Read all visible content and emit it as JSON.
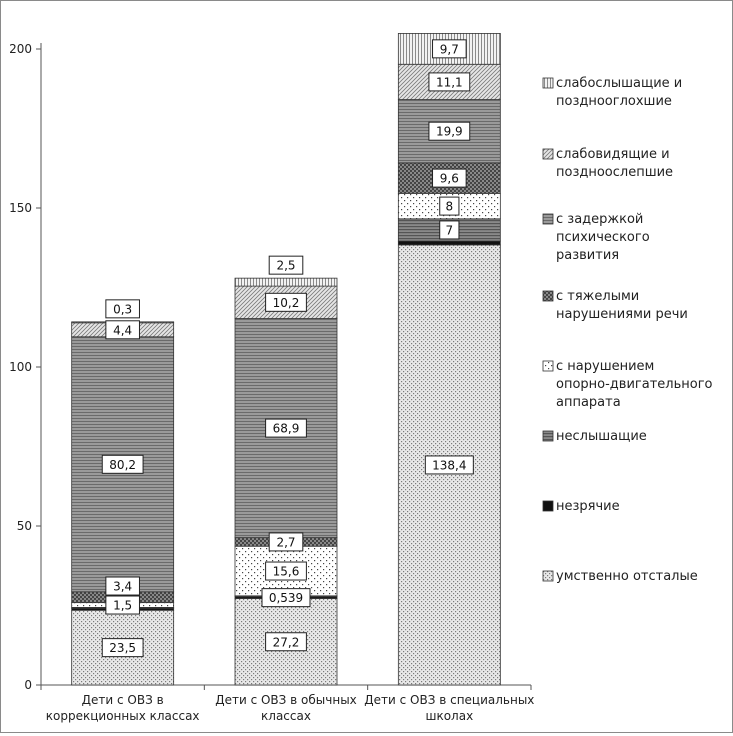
{
  "chart_data": {
    "type": "bar",
    "stacked": true,
    "title": "",
    "xlabel": "",
    "ylabel": "",
    "ylim": [
      0,
      200
    ],
    "yticks": [
      "0",
      "50",
      "100",
      "150",
      "200"
    ],
    "grid": false,
    "legend_position": "right",
    "categories": [
      [
        "Дети с ОВЗ в",
        "коррекционных классах"
      ],
      [
        "Дети с ОВЗ в обычных",
        "классах"
      ],
      [
        "Дети с ОВЗ в специальных",
        "школах"
      ]
    ],
    "series": [
      {
        "name": "умственно отсталые",
        "legend_lines": [
          "умственно отсталые"
        ],
        "values": [
          23.5,
          27.2,
          138.4
        ],
        "labels": [
          "23,5",
          "27,2",
          "138,4"
        ]
      },
      {
        "name": "незрячие",
        "legend_lines": [
          "незрячие"
        ],
        "values": [
          0.6,
          0.539,
          1.2
        ],
        "labels": [
          "",
          "0,539",
          ""
        ]
      },
      {
        "name": "неслышащие",
        "legend_lines": [
          "неслышащие"
        ],
        "values": [
          0.3,
          0.3,
          7
        ],
        "labels": [
          "",
          "",
          "7"
        ]
      },
      {
        "name": "с нарушением опорно-двигательного аппарата",
        "legend_lines": [
          "с нарушением",
          "опорно-двигательного",
          "аппарата"
        ],
        "values": [
          1.5,
          15.6,
          8
        ],
        "labels": [
          "1,5",
          "15,6",
          "8"
        ]
      },
      {
        "name": "с тяжелыми нарушениями речи",
        "legend_lines": [
          "с тяжелыми",
          "нарушениями речи"
        ],
        "values": [
          3.4,
          2.7,
          9.6
        ],
        "labels": [
          "3,4",
          "2,7",
          "9,6"
        ]
      },
      {
        "name": "с задержкой психического развития",
        "legend_lines": [
          " с задержкой",
          "психического",
          "развития"
        ],
        "values": [
          80.2,
          68.9,
          19.9
        ],
        "labels": [
          "80,2",
          "68,9",
          "19,9"
        ]
      },
      {
        "name": "слабовидящие и поздноослепшие",
        "legend_lines": [
          "слабовидящие и",
          "поздноослепшие"
        ],
        "values": [
          4.4,
          10.2,
          11.1
        ],
        "labels": [
          "4,4",
          "10,2",
          "11,1"
        ]
      },
      {
        "name": "слабослышащие и позднооглохшие",
        "legend_lines": [
          "слабослышащие и",
          "позднооглохшие"
        ],
        "values": [
          0.3,
          2.5,
          9.7
        ],
        "labels": [
          "0,3",
          "2,5",
          "9,7"
        ]
      }
    ]
  }
}
